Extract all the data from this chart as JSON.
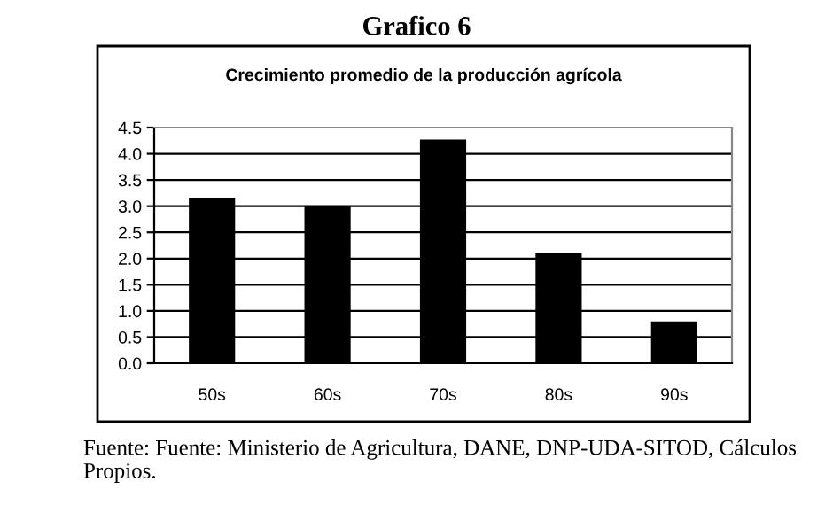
{
  "chart_data": {
    "type": "bar",
    "title": "Grafico 6",
    "subtitle": "Crecimiento promedio de la producción agrícola",
    "categories": [
      "50s",
      "60s",
      "70s",
      "80s",
      "90s"
    ],
    "values": [
      3.15,
      3.0,
      4.27,
      2.1,
      0.8
    ],
    "color": "#000000",
    "ylim": [
      0,
      4.5
    ],
    "yticks": [
      {
        "value": 0,
        "label": "0.0"
      },
      0.5,
      {
        "value": 1,
        "label": "1.0"
      },
      1.5,
      {
        "value": 2,
        "label": "2.0"
      },
      2.5,
      {
        "value": 3,
        "label": "3.0"
      },
      3.5,
      {
        "value": 4,
        "label": "4.0"
      },
      4.5
    ],
    "grid": "y",
    "annotations": [
      "Fuente: Fuente: Ministerio de Agricultura, DANE, DNP-UDA-SITOD, Cálculos Propios."
    ]
  }
}
